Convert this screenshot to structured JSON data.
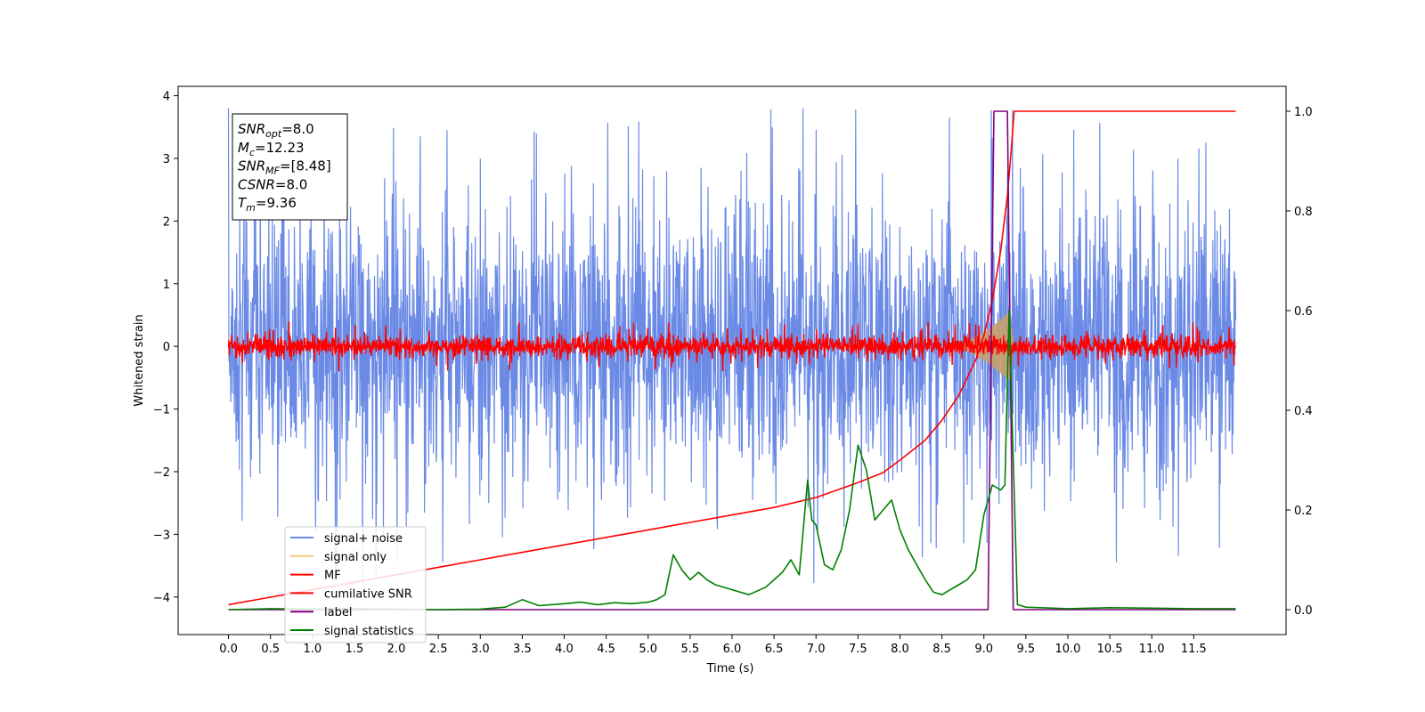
{
  "chart_data": {
    "type": "line",
    "title": "",
    "xlabel": "Time (s)",
    "ylabel": "Whitened strain",
    "xlim": [
      -0.6,
      12.6
    ],
    "ylim": [
      -4.6,
      4.15
    ],
    "y2lim": [
      -0.05,
      1.05
    ],
    "grid": false,
    "legend_position": "lower-left",
    "x_ticks": [
      "0.0",
      "0.5",
      "1.0",
      "1.5",
      "2.0",
      "2.5",
      "3.0",
      "3.5",
      "4.0",
      "4.5",
      "5.0",
      "5.5",
      "6.0",
      "6.5",
      "7.0",
      "7.5",
      "8.0",
      "8.5",
      "9.0",
      "9.5",
      "10.0",
      "10.5",
      "11.0",
      "11.5"
    ],
    "y_ticks": [
      "4",
      "3",
      "2",
      "1",
      "0",
      "−1",
      "−2",
      "−3",
      "−4"
    ],
    "y2_ticks": [
      "1.0",
      "0.8",
      "0.6",
      "0.4",
      "0.2",
      "0.0"
    ],
    "annotation_box": {
      "lines": [
        {
          "base": "SNR",
          "sub": "opt",
          "rest": "=8.0"
        },
        {
          "base": "M",
          "sub": "c",
          "rest": "=12.23"
        },
        {
          "base": "SNR",
          "sub": "MF",
          "rest": "=[8.48]"
        },
        {
          "base": "CSNR",
          "sub": "",
          "rest": "=8.0"
        },
        {
          "base": "T",
          "sub": "m",
          "rest": "=9.36"
        }
      ]
    },
    "series": [
      {
        "name": "signal+ noise",
        "color": "#6a8ae6",
        "axis": "left",
        "kind": "noise",
        "x_range": [
          0,
          12.0
        ],
        "envelope": 1.9,
        "spike_max": 3.8
      },
      {
        "name": "signal only",
        "color": "#f5c87a",
        "axis": "left",
        "kind": "chirp",
        "x_range": [
          8.6,
          9.36
        ],
        "peak_amplitude": 0.55,
        "peak_time": 9.3
      },
      {
        "name": "MF",
        "color": "#ff0000",
        "axis": "left",
        "kind": "noise",
        "x_range": [
          0,
          12.0
        ],
        "envelope": 0.15,
        "spike_max": 0.4
      },
      {
        "name": "cumilative SNR",
        "color": "#ff0000",
        "axis": "right",
        "x": [
          0.0,
          0.5,
          1.0,
          1.5,
          2.0,
          2.5,
          3.0,
          3.5,
          4.0,
          4.5,
          5.0,
          5.5,
          6.0,
          6.5,
          7.0,
          7.5,
          7.8,
          8.0,
          8.3,
          8.5,
          8.7,
          8.9,
          9.0,
          9.1,
          9.2,
          9.28,
          9.33,
          9.36,
          12.0
        ],
        "y": [
          0.01,
          0.025,
          0.04,
          0.055,
          0.07,
          0.085,
          0.1,
          0.115,
          0.13,
          0.145,
          0.16,
          0.175,
          0.19,
          0.205,
          0.225,
          0.255,
          0.275,
          0.3,
          0.34,
          0.38,
          0.43,
          0.5,
          0.55,
          0.62,
          0.72,
          0.83,
          0.93,
          1.0,
          1.0
        ]
      },
      {
        "name": "label",
        "color": "#800080",
        "axis": "right",
        "x": [
          0.0,
          9.05,
          9.12,
          9.28,
          9.35,
          12.0
        ],
        "y": [
          0.0,
          0.0,
          1.0,
          1.0,
          0.0,
          0.0
        ]
      },
      {
        "name": "signal statistics",
        "color": "#008000",
        "axis": "right",
        "x": [
          0.0,
          0.5,
          1.0,
          1.5,
          2.0,
          2.5,
          3.0,
          3.3,
          3.5,
          3.7,
          4.0,
          4.2,
          4.4,
          4.6,
          4.8,
          5.0,
          5.1,
          5.2,
          5.3,
          5.4,
          5.5,
          5.6,
          5.7,
          5.8,
          6.0,
          6.2,
          6.4,
          6.5,
          6.6,
          6.7,
          6.8,
          6.9,
          6.95,
          7.0,
          7.1,
          7.2,
          7.3,
          7.4,
          7.5,
          7.6,
          7.7,
          7.8,
          7.9,
          8.0,
          8.1,
          8.2,
          8.3,
          8.4,
          8.5,
          8.6,
          8.7,
          8.8,
          8.9,
          9.0,
          9.1,
          9.2,
          9.25,
          9.3,
          9.35,
          9.4,
          9.5,
          10.0,
          10.5,
          11.0,
          11.5,
          12.0
        ],
        "y": [
          0.0,
          0.002,
          0.001,
          0.002,
          0.001,
          0.0,
          0.001,
          0.005,
          0.02,
          0.008,
          0.012,
          0.015,
          0.01,
          0.014,
          0.012,
          0.015,
          0.02,
          0.03,
          0.11,
          0.08,
          0.06,
          0.075,
          0.06,
          0.05,
          0.04,
          0.03,
          0.045,
          0.06,
          0.075,
          0.1,
          0.07,
          0.26,
          0.18,
          0.17,
          0.09,
          0.08,
          0.12,
          0.2,
          0.33,
          0.28,
          0.18,
          0.2,
          0.22,
          0.16,
          0.12,
          0.09,
          0.06,
          0.035,
          0.03,
          0.04,
          0.05,
          0.06,
          0.08,
          0.19,
          0.25,
          0.24,
          0.25,
          0.6,
          0.3,
          0.01,
          0.005,
          0.002,
          0.004,
          0.003,
          0.002,
          0.002
        ]
      }
    ]
  }
}
